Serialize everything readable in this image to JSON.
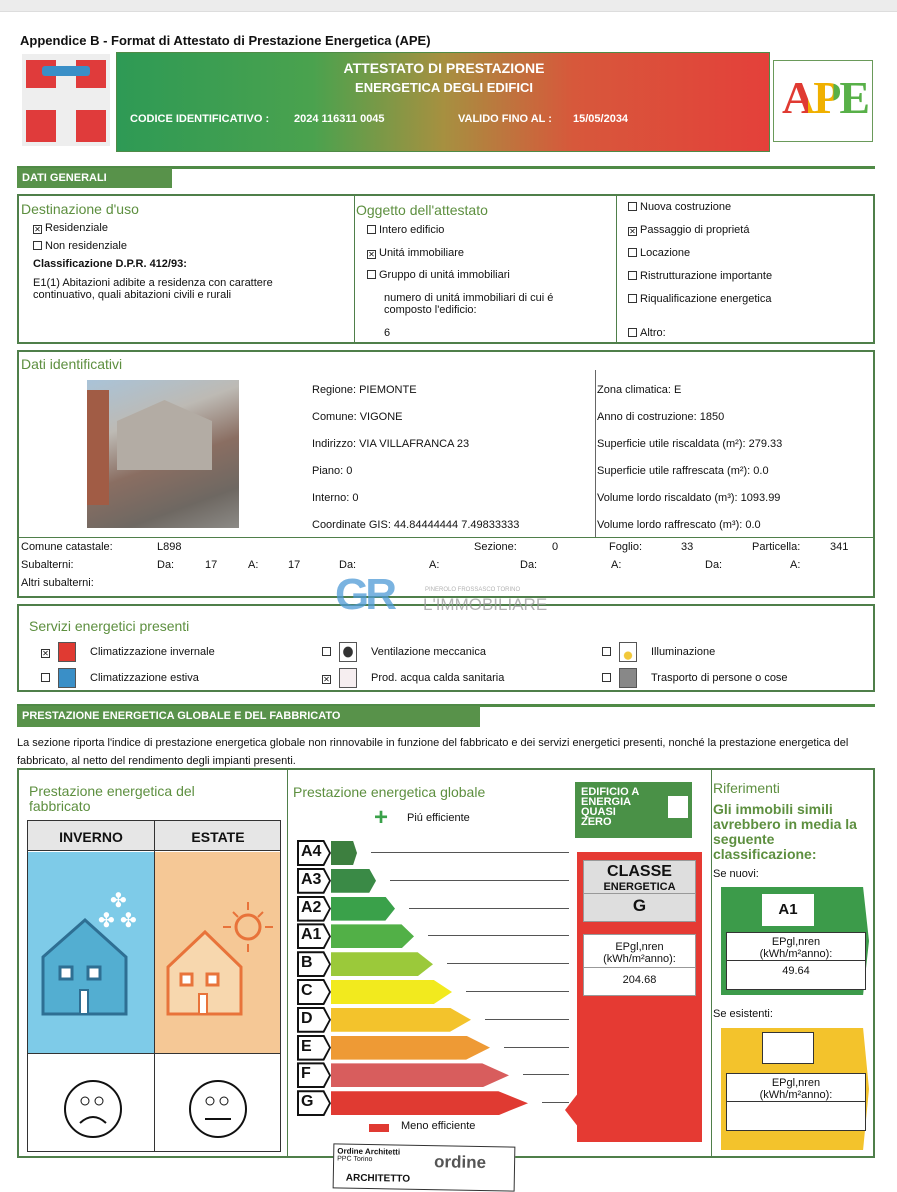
{
  "doc_title": "Appendice B - Format di Attestato di Prestazione Energetica (APE)",
  "banner": {
    "title1": "ATTESTATO DI PRESTAZIONE",
    "title2": "ENERGETICA DEGLI EDIFICI",
    "codice_label": "CODICE IDENTIFICATIVO :",
    "codice": "2024 116311 0045",
    "valido_label": "VALIDO FINO AL :",
    "valido": "15/05/2034",
    "ape_logo": "APE"
  },
  "dati_generali": {
    "tab": "DATI GENERALI",
    "destinazione": {
      "title": "Destinazione d'uso",
      "items": [
        {
          "label": "Residenziale",
          "checked": true
        },
        {
          "label": "Non residenziale",
          "checked": false
        }
      ],
      "class_label": "Classificazione D.P.R. 412/93:",
      "class_text": "E1(1) Abitazioni adibite a residenza con carattere continuativo, quali abitazioni civili e rurali"
    },
    "oggetto": {
      "title": "Oggetto dell'attestato",
      "items": [
        {
          "label": "Intero edificio",
          "checked": false
        },
        {
          "label": "Unitá  immobiliare",
          "checked": true
        },
        {
          "label": "Gruppo di unitá  immobiliari",
          "checked": false
        }
      ],
      "num_label": "numero di unitá  immobiliari di cui é composto l'edificio:",
      "num": "6"
    },
    "motivo": [
      {
        "label": "Nuova costruzione",
        "checked": false
      },
      {
        "label": "Passaggio di proprietá",
        "checked": true
      },
      {
        "label": "Locazione",
        "checked": false
      },
      {
        "label": "Ristrutturazione importante",
        "checked": false
      },
      {
        "label": "Riqualificazione energetica",
        "checked": false
      },
      {
        "label": "Altro:",
        "checked": false
      }
    ]
  },
  "identificativi": {
    "title": "Dati identificativi",
    "left": [
      "Regione: PIEMONTE",
      "Comune: VIGONE",
      "Indirizzo: VIA VILLAFRANCA 23",
      "Piano: 0",
      "Interno: 0",
      "Coordinate GIS: 44.84444444 7.49833333"
    ],
    "right": [
      "Zona climatica: E",
      "Anno di costruzione: 1850",
      "Superficie utile riscaldata (m²): 279.33",
      "Superficie utile raffrescata (m²): 0.0",
      "Volume lordo riscaldato (m³): 1093.99",
      "Volume lordo raffrescato (m³): 0.0"
    ],
    "catasto": {
      "comune_label": "Comune catastale:",
      "comune": "L898",
      "sezione_label": "Sezione:",
      "sezione": "0",
      "foglio_label": "Foglio:",
      "foglio": "33",
      "particella_label": "Particella:",
      "particella": "341",
      "sub_label": "Subalterni:",
      "da": "Da:",
      "a": "A:",
      "sub_da": "17",
      "sub_a": "17",
      "altri_label": "Altri subalterni:"
    }
  },
  "watermark": {
    "logo": "GR",
    "sub": "PINEROLO  FROSSASCO  TORINO",
    "name": "L'IMMOBILIARE"
  },
  "servizi": {
    "title": "Servizi energetici presenti",
    "items": [
      {
        "label": "Climatizzazione invernale",
        "checked": true,
        "icon": "radiator-icon"
      },
      {
        "label": "Climatizzazione estiva",
        "checked": false,
        "icon": "air-conditioner-icon"
      },
      {
        "label": "Ventilazione meccanica",
        "checked": false,
        "icon": "fan-icon"
      },
      {
        "label": "Prod. acqua calda sanitaria",
        "checked": true,
        "icon": "hot-water-icon"
      },
      {
        "label": "Illuminazione",
        "checked": false,
        "icon": "lamp-icon"
      },
      {
        "label": "Trasporto di persone o cose",
        "checked": false,
        "icon": "elevator-icon"
      }
    ]
  },
  "prestazione": {
    "tab": "PRESTAZIONE ENERGETICA GLOBALE E DEL FABBRICATO",
    "intro": "La sezione riporta l'indice di prestazione energetica globale non rinnovabile in funzione del fabbricato e dei servizi energetici presenti, nonché la prestazione energetica del fabbricato, al netto del rendimento degli impianti presenti.",
    "fabbricato": {
      "title": "Prestazione energetica del fabbricato",
      "inverno": "INVERNO",
      "estate": "ESTATE",
      "inverno_face": "sad",
      "estate_face": "neutral"
    },
    "globale": {
      "title": "Prestazione energetica globale",
      "piu": "Piú efficiente",
      "meno": "Meno efficiente",
      "classes": [
        {
          "c": "A4",
          "color": "#3d7f3f"
        },
        {
          "c": "A3",
          "color": "#3a8a46"
        },
        {
          "c": "A2",
          "color": "#3aa14a"
        },
        {
          "c": "A1",
          "color": "#52b047"
        },
        {
          "c": "B",
          "color": "#9bc93a"
        },
        {
          "c": "C",
          "color": "#f2ea1e"
        },
        {
          "c": "D",
          "color": "#f3c32c"
        },
        {
          "c": "E",
          "color": "#ee9a35"
        },
        {
          "c": "F",
          "color": "#d85d5d"
        },
        {
          "c": "G",
          "color": "#e03a32"
        }
      ]
    },
    "nzeb": {
      "label": "EDIFICIO A ENERGIA QUASI ZERO",
      "checked": false
    },
    "classe": {
      "label1": "CLASSE",
      "label2": "ENERGETICA",
      "value": "G",
      "ep_label1": "EPgl,nren",
      "ep_label2": "(kWh/m²anno):",
      "ep_value": "204.68"
    },
    "riferimenti": {
      "title": "Riferimenti",
      "text": "Gli immobili simili avrebbero in media la seguente classificazione:",
      "nuovi": "Se nuovi:",
      "nuovi_class": "A1",
      "nuovi_ep": "49.64",
      "esistenti": "Se esistenti:",
      "esistenti_class": "",
      "esistenti_ep": "",
      "ep_label1": "EPgl,nren",
      "ep_label2": "(kWh/m²anno):"
    },
    "stamp": {
      "l1": "Ordine Architetti",
      "l2": "PPC Torino",
      "l3": "ARCHITETTO",
      "logo": "ordine"
    }
  }
}
